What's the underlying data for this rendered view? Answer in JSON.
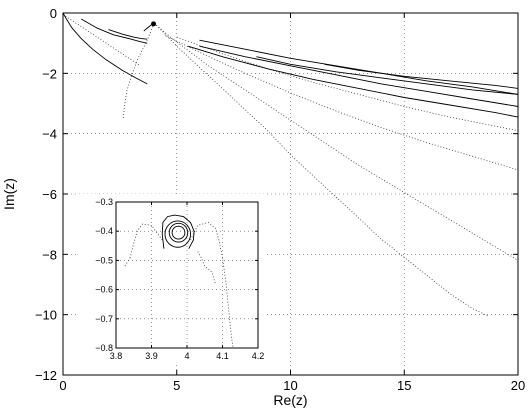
{
  "chart_data": [
    {
      "type": "line",
      "title": "",
      "xlabel": "Re(z)",
      "ylabel": "Im(z)",
      "xlim": [
        0,
        20
      ],
      "ylim": [
        -12,
        0
      ],
      "xticks": [
        0,
        5,
        10,
        15,
        20
      ],
      "yticks": [
        0,
        -2,
        -4,
        -6,
        -8,
        -10,
        -12
      ],
      "xtick_labels": [
        "0",
        "5",
        "10",
        "15",
        "20"
      ],
      "ytick_labels": [
        "0",
        "−2",
        "−4",
        "−6",
        "−8",
        "−10",
        "−12"
      ],
      "grid": true,
      "line_color": "#000000",
      "series": [
        {
          "style": "solid",
          "x": [
            0,
            0.15,
            0.4,
            0.8,
            1.3,
            1.9,
            2.6,
            3.2,
            3.7
          ],
          "y": [
            0,
            -0.2,
            -0.5,
            -0.85,
            -1.2,
            -1.55,
            -1.9,
            -2.15,
            -2.35
          ]
        },
        {
          "style": "dotted",
          "x": [
            0,
            0.5,
            1.0,
            1.5,
            2.0,
            2.5,
            3.0,
            3.4
          ],
          "y": [
            -0.05,
            -0.3,
            -0.55,
            -0.8,
            -1.05,
            -1.3,
            -1.55,
            -1.75
          ]
        },
        {
          "style": "solid",
          "x": [
            0.8,
            1.5,
            2.2,
            2.9,
            3.4,
            3.7
          ],
          "y": [
            -0.2,
            -0.5,
            -0.72,
            -0.85,
            -0.95,
            -1.0
          ]
        },
        {
          "style": "solid",
          "x": [
            2.0,
            2.6,
            3.1,
            3.45,
            3.7
          ],
          "y": [
            -0.55,
            -0.7,
            -0.8,
            -0.85,
            -0.87
          ]
        },
        {
          "style": "solid",
          "x": [
            3.55,
            3.7,
            3.82,
            3.9,
            3.92,
            3.95,
            4.0,
            4.05
          ],
          "y": [
            -0.6,
            -0.5,
            -0.43,
            -0.38,
            -0.35,
            -0.32,
            -0.3,
            -0.3
          ]
        },
        {
          "style": "dotted",
          "x": [
            4.0,
            3.7,
            3.3,
            3.0,
            2.8,
            2.7,
            2.65
          ],
          "y": [
            -0.35,
            -0.9,
            -1.5,
            -2.1,
            -2.6,
            -3.1,
            -3.5
          ]
        },
        {
          "style": "dotted",
          "x": [
            4.1,
            4.8,
            5.6,
            6.4,
            7.2,
            8.0,
            9.0,
            10.0,
            11.0,
            12.0,
            13.0,
            14.0,
            15.0,
            16.0,
            17.0,
            18.0,
            19.0,
            20.0
          ],
          "y": [
            -0.4,
            -0.85,
            -1.3,
            -1.75,
            -2.15,
            -2.55,
            -3.05,
            -3.55,
            -4.05,
            -4.55,
            -5.05,
            -5.5,
            -5.95,
            -6.4,
            -6.85,
            -7.3,
            -7.75,
            -8.2
          ]
        },
        {
          "style": "dotted",
          "x": [
            4.1,
            5.0,
            6.0,
            7.0,
            8.0,
            9.0,
            10.0,
            11.0,
            12.0,
            13.0,
            14.0,
            15.0,
            16.0,
            17.0,
            18.0,
            18.7
          ],
          "y": [
            -0.4,
            -1.1,
            -1.8,
            -2.5,
            -3.2,
            -3.9,
            -4.7,
            -5.4,
            -6.1,
            -6.8,
            -7.5,
            -8.1,
            -8.7,
            -9.3,
            -9.8,
            -10.05
          ]
        },
        {
          "style": "dotted",
          "x": [
            4.5,
            6.0,
            8.0,
            10.0,
            12.0,
            14.0,
            16.0,
            18.0,
            20.0
          ],
          "y": [
            -0.75,
            -1.3,
            -2.0,
            -2.65,
            -3.25,
            -3.8,
            -4.3,
            -4.75,
            -5.2
          ]
        },
        {
          "style": "dotted",
          "x": [
            5.0,
            7.0,
            9.0,
            11.0,
            13.0,
            15.0,
            17.0,
            19.0,
            20.0
          ],
          "y": [
            -0.8,
            -1.35,
            -1.85,
            -2.3,
            -2.7,
            -3.1,
            -3.45,
            -3.75,
            -3.9
          ]
        },
        {
          "style": "solid",
          "x": [
            5.5,
            7.0,
            9.0,
            11.0,
            13.0,
            15.0,
            17.0,
            19.0,
            20.0
          ],
          "y": [
            -1.1,
            -1.45,
            -1.85,
            -2.2,
            -2.5,
            -2.8,
            -3.05,
            -3.3,
            -3.45
          ]
        },
        {
          "style": "solid",
          "x": [
            6.0,
            8.0,
            10.0,
            12.0,
            14.0,
            16.0,
            18.0,
            20.0
          ],
          "y": [
            -1.1,
            -1.45,
            -1.75,
            -2.05,
            -2.35,
            -2.6,
            -2.85,
            -3.1
          ]
        },
        {
          "style": "solid",
          "x": [
            6.0,
            8.0,
            10.0,
            12.0,
            14.0,
            16.0,
            18.0,
            20.0
          ],
          "y": [
            -0.9,
            -1.2,
            -1.5,
            -1.75,
            -2.0,
            -2.25,
            -2.45,
            -2.7
          ]
        },
        {
          "style": "solid",
          "x": [
            8.5,
            10.0,
            12.0,
            14.0,
            16.0,
            18.0,
            20.0
          ],
          "y": [
            -1.45,
            -1.7,
            -1.95,
            -2.15,
            -2.35,
            -2.55,
            -2.7
          ]
        },
        {
          "style": "solid",
          "x": [
            11.5,
            13.0,
            15.0,
            17.0,
            19.0,
            20.0
          ],
          "y": [
            -1.7,
            -1.9,
            -2.1,
            -2.25,
            -2.4,
            -2.5
          ]
        }
      ],
      "markers": [
        {
          "x": 3.98,
          "y": -0.36
        }
      ]
    },
    {
      "type": "line",
      "title": "",
      "xlabel": "",
      "ylabel": "",
      "xlim": [
        3.8,
        4.2
      ],
      "ylim": [
        -0.8,
        -0.3
      ],
      "xticks": [
        3.8,
        3.9,
        4.0,
        4.1,
        4.2
      ],
      "yticks": [
        -0.3,
        -0.4,
        -0.5,
        -0.6,
        -0.7,
        -0.8
      ],
      "xtick_labels": [
        "3.8",
        "3.9",
        "4",
        "4.1",
        "4.2"
      ],
      "ytick_labels": [
        "−0.3",
        "−0.4",
        "−0.5",
        "−0.6",
        "−0.7",
        "−0.8"
      ],
      "grid": true,
      "loops": [
        {
          "style": "solid",
          "cx": 3.976,
          "cy": -0.405,
          "rx": 0.018,
          "ry": 0.022
        },
        {
          "style": "solid",
          "cx": 3.976,
          "cy": -0.405,
          "rx": 0.026,
          "ry": 0.032
        },
        {
          "style": "solid",
          "cx": 3.974,
          "cy": -0.41,
          "rx": 0.036,
          "ry": 0.045
        }
      ],
      "series": [
        {
          "style": "solid",
          "x": [
            3.935,
            3.93,
            3.932,
            3.945,
            3.965,
            3.99,
            4.01,
            4.02,
            4.018,
            4.005
          ],
          "y": [
            -0.46,
            -0.41,
            -0.37,
            -0.35,
            -0.345,
            -0.35,
            -0.37,
            -0.4,
            -0.43,
            -0.46
          ]
        },
        {
          "style": "dotted",
          "x": [
            3.93,
            3.9,
            3.875,
            3.86,
            3.85,
            3.84
          ],
          "y": [
            -0.43,
            -0.38,
            -0.375,
            -0.4,
            -0.44,
            -0.49
          ]
        },
        {
          "style": "dotted",
          "x": [
            3.84,
            3.835,
            3.83,
            3.825
          ],
          "y": [
            -0.49,
            -0.5,
            -0.51,
            -0.52
          ]
        },
        {
          "style": "dotted",
          "x": [
            4.01,
            4.03,
            4.06,
            4.08,
            4.09,
            4.1,
            4.11,
            4.12
          ],
          "y": [
            -0.43,
            -0.38,
            -0.37,
            -0.39,
            -0.43,
            -0.49,
            -0.58,
            -0.7
          ]
        },
        {
          "style": "dotted",
          "x": [
            4.12,
            4.125,
            4.13
          ],
          "y": [
            -0.7,
            -0.76,
            -0.8
          ]
        },
        {
          "style": "dotted",
          "x": [
            4.03,
            4.04,
            4.05,
            4.07,
            4.08
          ],
          "y": [
            -0.47,
            -0.49,
            -0.52,
            -0.54,
            -0.58
          ]
        }
      ]
    }
  ]
}
